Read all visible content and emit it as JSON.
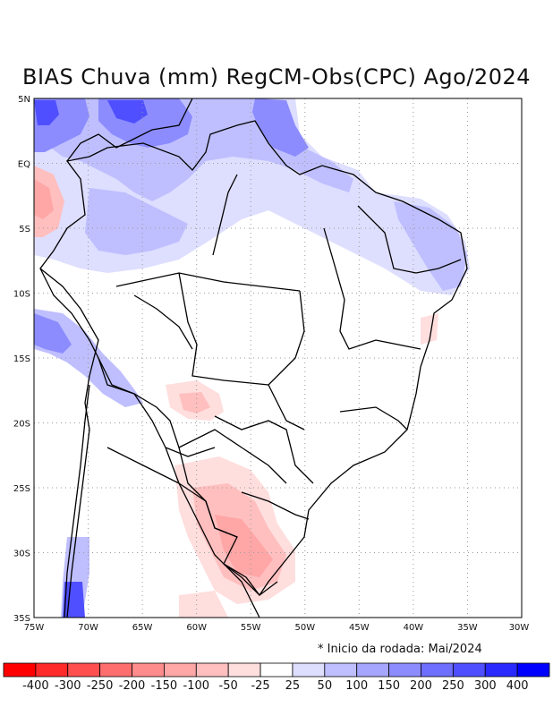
{
  "title": "BIAS Chuva (mm) RegCM-Obs(CPC) Ago/2024",
  "note": "* Inicio da rodada: Mai/2024",
  "map": {
    "lon_range": [
      -75,
      -30
    ],
    "lat_range": [
      -35,
      5
    ],
    "x_ticks": [
      "75W",
      "70W",
      "65W",
      "60W",
      "55W",
      "50W",
      "45W",
      "40W",
      "35W",
      "30W"
    ],
    "y_ticks": [
      "5N",
      "EQ",
      "5S",
      "10S",
      "15S",
      "20S",
      "25S",
      "30S",
      "35S"
    ],
    "grid": "dotted"
  },
  "colorbar": {
    "colors": [
      "#ff0000",
      "#ff2a2a",
      "#ff4f4f",
      "#ff6e6e",
      "#ff8c8c",
      "#ffa6a6",
      "#ffbfbf",
      "#ffdede",
      "#ffffff",
      "#dedeff",
      "#bfbfff",
      "#a6a6ff",
      "#8c8cff",
      "#6e6eff",
      "#4f4fff",
      "#2a2aff",
      "#0000ff"
    ],
    "labels": [
      "-400",
      "-300",
      "-250",
      "-200",
      "-150",
      "-100",
      "-50",
      "-25",
      "25",
      "50",
      "100",
      "150",
      "200",
      "250",
      "300",
      "400"
    ]
  }
}
